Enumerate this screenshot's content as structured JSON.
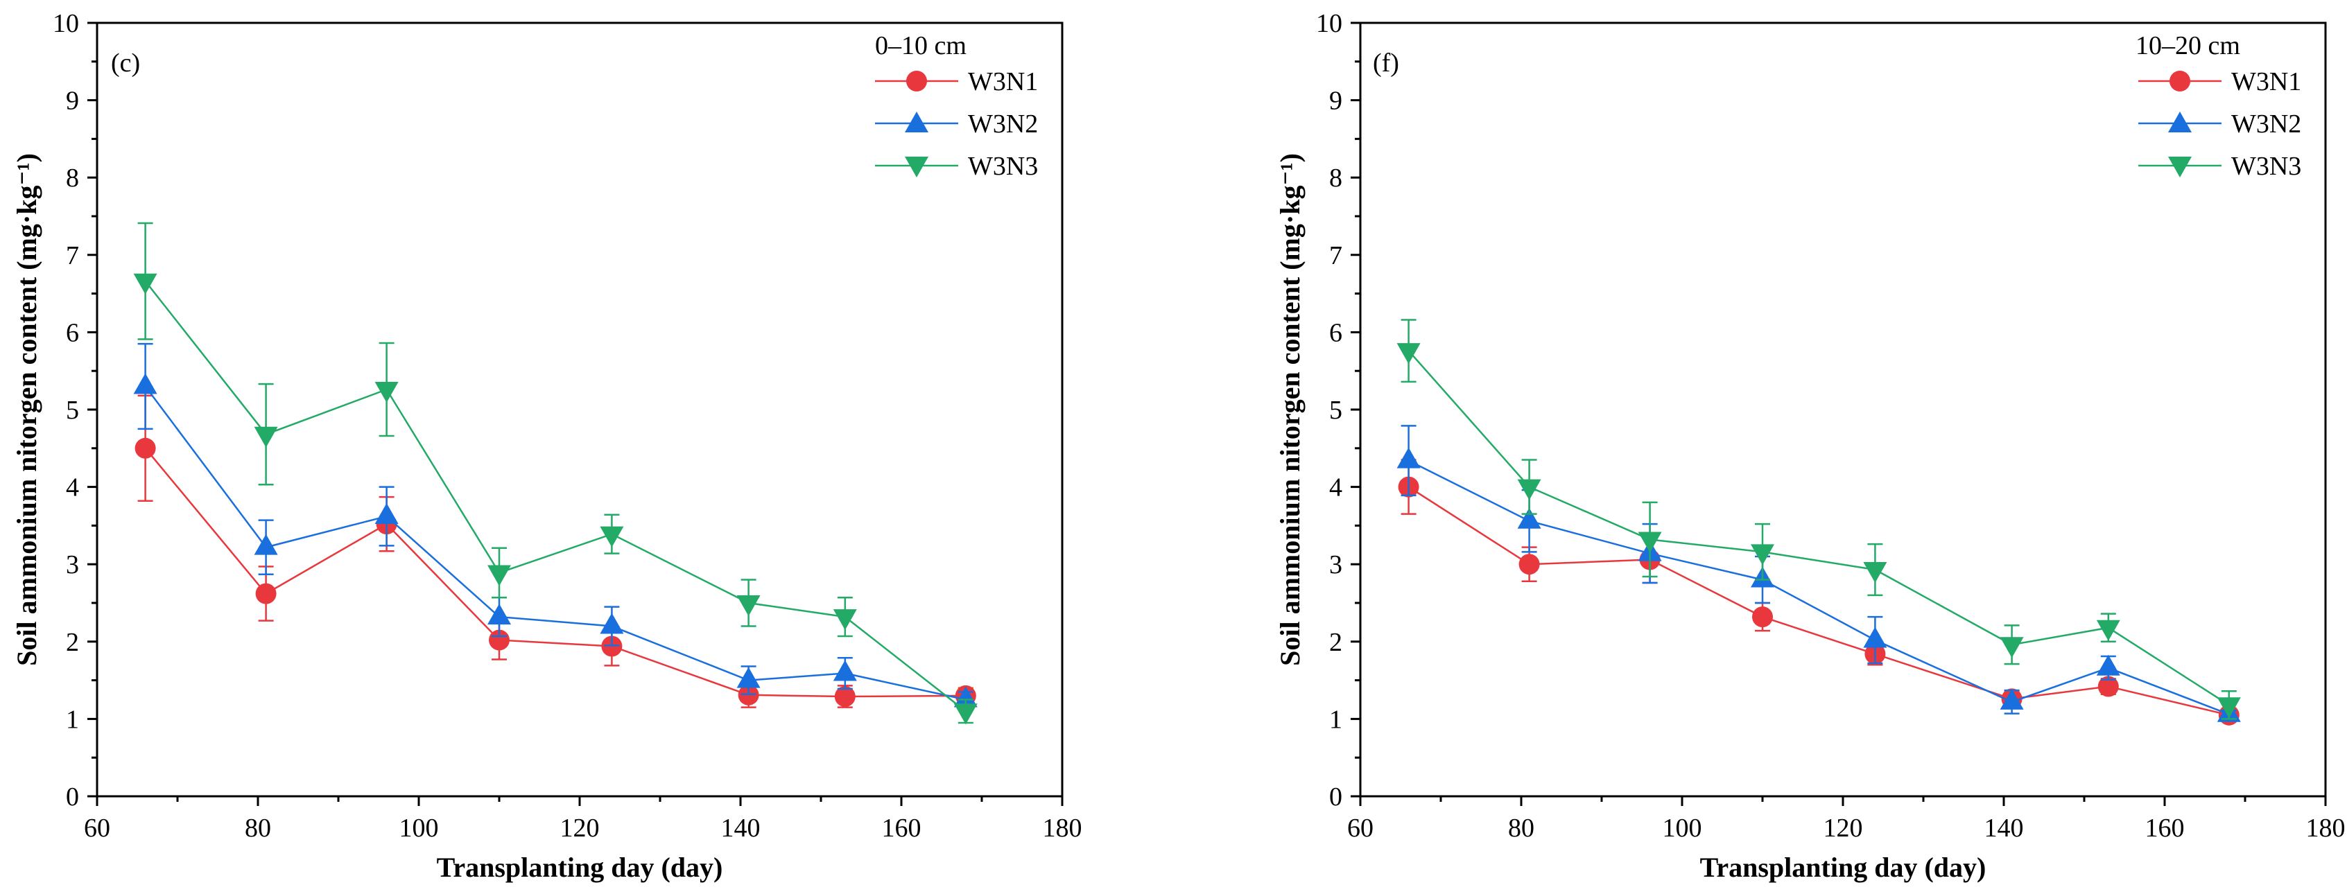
{
  "figure": {
    "panels": [
      {
        "panel_label": "(c)",
        "depth_label": "0–10 cm",
        "chart_data": {
          "type": "line",
          "title": "",
          "xlabel": "Transplanting day (day)",
          "ylabel": "Soil ammonium nitorgen content (mg·kg⁻¹)",
          "xlim": [
            60,
            180
          ],
          "ylim": [
            0,
            10
          ],
          "x_ticks": [
            60,
            80,
            100,
            120,
            140,
            160,
            180
          ],
          "y_ticks": [
            0,
            1,
            2,
            3,
            4,
            5,
            6,
            7,
            8,
            9,
            10
          ],
          "x": [
            66,
            81,
            96,
            110,
            124,
            141,
            153,
            168
          ],
          "legend_position": "top-right",
          "series": [
            {
              "name": "W3N1",
              "color": "#e8383d",
              "marker": "circle",
              "values": [
                4.5,
                2.62,
                3.52,
                2.02,
                1.94,
                1.31,
                1.29,
                1.3
              ],
              "errors": [
                0.68,
                0.35,
                0.35,
                0.25,
                0.25,
                0.16,
                0.14,
                0.1
              ]
            },
            {
              "name": "W3N2",
              "color": "#1a6fdf",
              "marker": "triangle-up",
              "values": [
                5.3,
                3.22,
                3.62,
                2.32,
                2.2,
                1.5,
                1.59,
                1.25
              ],
              "errors": [
                0.55,
                0.35,
                0.38,
                0.25,
                0.25,
                0.18,
                0.2,
                0.1
              ]
            },
            {
              "name": "W3N3",
              "color": "#22aa66",
              "marker": "triangle-down",
              "values": [
                6.66,
                4.68,
                5.26,
                2.89,
                3.39,
                2.5,
                2.32,
                1.1
              ],
              "errors": [
                0.75,
                0.65,
                0.6,
                0.32,
                0.25,
                0.3,
                0.25,
                0.15
              ]
            }
          ]
        }
      },
      {
        "panel_label": "(f)",
        "depth_label": "10–20 cm",
        "chart_data": {
          "type": "line",
          "title": "",
          "xlabel": "Transplanting day (day)",
          "ylabel": "Soil ammonium nitorgen content (mg·kg⁻¹)",
          "xlim": [
            60,
            180
          ],
          "ylim": [
            0,
            10
          ],
          "x_ticks": [
            60,
            80,
            100,
            120,
            140,
            160,
            180
          ],
          "y_ticks": [
            0,
            1,
            2,
            3,
            4,
            5,
            6,
            7,
            8,
            9,
            10
          ],
          "x": [
            66,
            81,
            96,
            110,
            124,
            141,
            153,
            168
          ],
          "legend_position": "top-right",
          "series": [
            {
              "name": "W3N1",
              "color": "#e8383d",
              "marker": "circle",
              "values": [
                4.0,
                3.0,
                3.06,
                2.32,
                1.84,
                1.26,
                1.42,
                1.05
              ],
              "errors": [
                0.35,
                0.22,
                0.3,
                0.18,
                0.14,
                0.1,
                0.1,
                0.05
              ]
            },
            {
              "name": "W3N2",
              "color": "#1a6fdf",
              "marker": "triangle-up",
              "values": [
                4.34,
                3.56,
                3.14,
                2.8,
                2.02,
                1.22,
                1.66,
                1.06
              ],
              "errors": [
                0.45,
                0.4,
                0.38,
                0.3,
                0.3,
                0.15,
                0.15,
                0.05
              ]
            },
            {
              "name": "W3N3",
              "color": "#22aa66",
              "marker": "triangle-down",
              "values": [
                5.76,
                4.0,
                3.32,
                3.16,
                2.93,
                1.96,
                2.18,
                1.18
              ],
              "errors": [
                0.4,
                0.35,
                0.48,
                0.36,
                0.33,
                0.25,
                0.18,
                0.18
              ]
            }
          ]
        }
      }
    ]
  }
}
